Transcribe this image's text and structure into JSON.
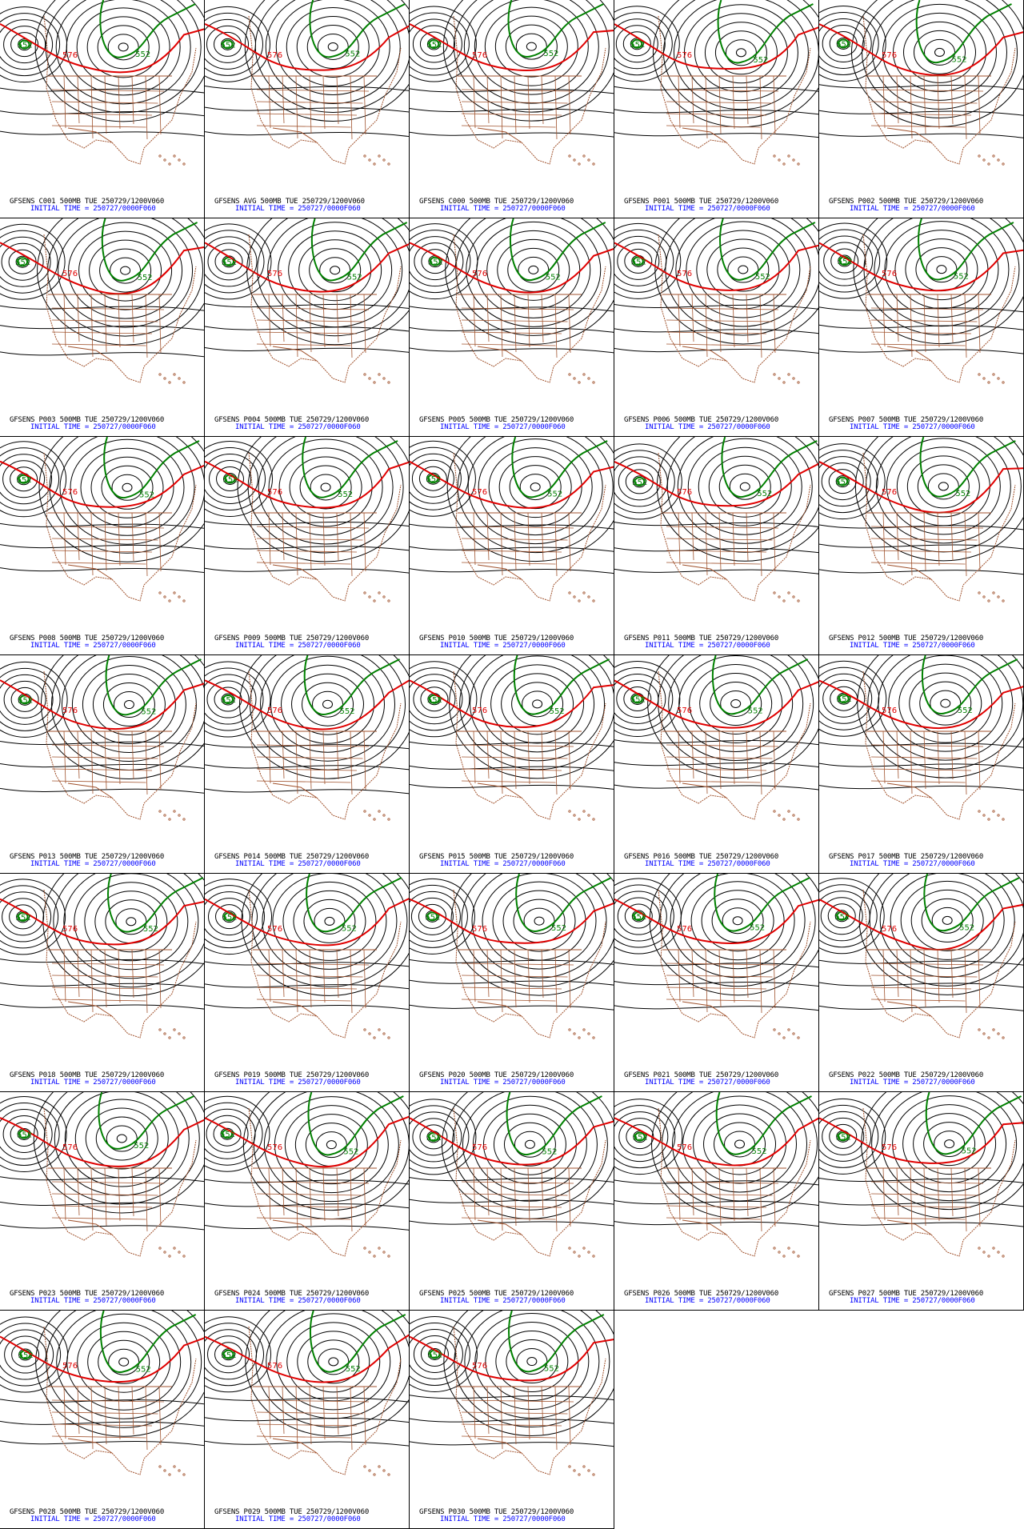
{
  "map": {
    "grid_columns": 5,
    "colors": {
      "contour": "#000000",
      "contour_576": "#e00000",
      "contour_552": "#008000",
      "boundaries": "#a0522d",
      "caption": "#000000",
      "initial_time": "#0000ff"
    },
    "contour_labels": {
      "red": "576",
      "green": "552"
    },
    "panels": [
      {
        "title": "GFSENS C001 500MB TUE 250729/1200V060",
        "init": "INITIAL TIME = 250727/0000F060"
      },
      {
        "title": "GFSENS AVG 500MB TUE 250729/1200V060",
        "init": "INITIAL TIME = 250727/0000F060"
      },
      {
        "title": "GFSENS C000 500MB TUE 250729/1200V060",
        "init": "INITIAL TIME = 250727/0000F060"
      },
      {
        "title": "GFSENS P001 500MB TUE 250729/1200V060",
        "init": "INITIAL TIME = 250727/0000F060"
      },
      {
        "title": "GFSENS P002 500MB TUE 250729/1200V060",
        "init": "INITIAL TIME = 250727/0000F060"
      },
      {
        "title": "GFSENS P003 500MB TUE 250729/1200V060",
        "init": "INITIAL TIME = 250727/0000F060"
      },
      {
        "title": "GFSENS P004 500MB TUE 250729/1200V060",
        "init": "INITIAL TIME = 250727/0000F060"
      },
      {
        "title": "GFSENS P005 500MB TUE 250729/1200V060",
        "init": "INITIAL TIME = 250727/0000F060"
      },
      {
        "title": "GFSENS P006 500MB TUE 250729/1200V060",
        "init": "INITIAL TIME = 250727/0000F060"
      },
      {
        "title": "GFSENS P007 500MB TUE 250729/1200V060",
        "init": "INITIAL TIME = 250727/0000F060"
      },
      {
        "title": "GFSENS P008 500MB TUE 250729/1200V060",
        "init": "INITIAL TIME = 250727/0000F060"
      },
      {
        "title": "GFSENS P009 500MB TUE 250729/1200V060",
        "init": "INITIAL TIME = 250727/0000F060"
      },
      {
        "title": "GFSENS P010 500MB TUE 250729/1200V060",
        "init": "INITIAL TIME = 250727/0000F060"
      },
      {
        "title": "GFSENS P011 500MB TUE 250729/1200V060",
        "init": "INITIAL TIME = 250727/0000F060"
      },
      {
        "title": "GFSENS P012 500MB TUE 250729/1200V060",
        "init": "INITIAL TIME = 250727/0000F060"
      },
      {
        "title": "GFSENS P013 500MB TUE 250729/1200V060",
        "init": "INITIAL TIME = 250727/0000F060"
      },
      {
        "title": "GFSENS P014 500MB TUE 250729/1200V060",
        "init": "INITIAL TIME = 250727/0000F060"
      },
      {
        "title": "GFSENS P015 500MB TUE 250729/1200V060",
        "init": "INITIAL TIME = 250727/0000F060"
      },
      {
        "title": "GFSENS P016 500MB TUE 250729/1200V060",
        "init": "INITIAL TIME = 250727/0000F060"
      },
      {
        "title": "GFSENS P017 500MB TUE 250729/1200V060",
        "init": "INITIAL TIME = 250727/0000F060"
      },
      {
        "title": "GFSENS P018 500MB TUE 250729/1200V060",
        "init": "INITIAL TIME = 250727/0000F060"
      },
      {
        "title": "GFSENS P019 500MB TUE 250729/1200V060",
        "init": "INITIAL TIME = 250727/0000F060"
      },
      {
        "title": "GFSENS P020 500MB TUE 250729/1200V060",
        "init": "INITIAL TIME = 250727/0000F060"
      },
      {
        "title": "GFSENS P021 500MB TUE 250729/1200V060",
        "init": "INITIAL TIME = 250727/0000F060"
      },
      {
        "title": "GFSENS P022 500MB TUE 250729/1200V060",
        "init": "INITIAL TIME = 250727/0000F060"
      },
      {
        "title": "GFSENS P023 500MB TUE 250729/1200V060",
        "init": "INITIAL TIME = 250727/0000F060"
      },
      {
        "title": "GFSENS P024 500MB TUE 250729/1200V060",
        "init": "INITIAL TIME = 250727/0000F060"
      },
      {
        "title": "GFSENS P025 500MB TUE 250729/1200V060",
        "init": "INITIAL TIME = 250727/0000F060"
      },
      {
        "title": "GFSENS P026 500MB TUE 250729/1200V060",
        "init": "INITIAL TIME = 250727/0000F060"
      },
      {
        "title": "GFSENS P027 500MB TUE 250729/1200V060",
        "init": "INITIAL TIME = 250727/0000F060"
      },
      {
        "title": "GFSENS P028 500MB TUE 250729/1200V060",
        "init": "INITIAL TIME = 250727/0000F060"
      },
      {
        "title": "GFSENS P029 500MB TUE 250729/1200V060",
        "init": "INITIAL TIME = 250727/0000F060"
      },
      {
        "title": "GFSENS P030 500MB TUE 250729/1200V060",
        "init": "INITIAL TIME = 250727/0000F060"
      }
    ]
  }
}
